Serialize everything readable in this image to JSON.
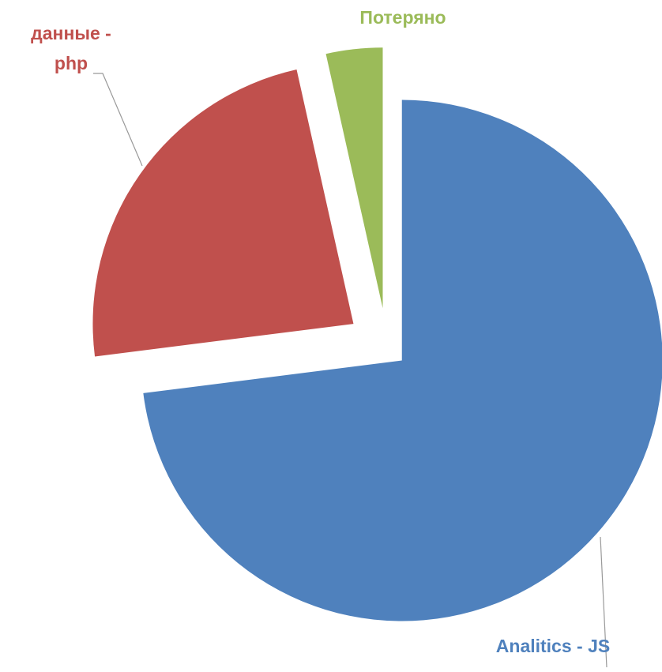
{
  "chart_data": {
    "type": "pie",
    "categories": [
      "Analitics - JS",
      "данные - php",
      "Потеряно"
    ],
    "values": [
      73,
      23.5,
      3.5
    ],
    "colors": [
      "#4f81bd",
      "#c0504d",
      "#9bbb59"
    ]
  }
}
